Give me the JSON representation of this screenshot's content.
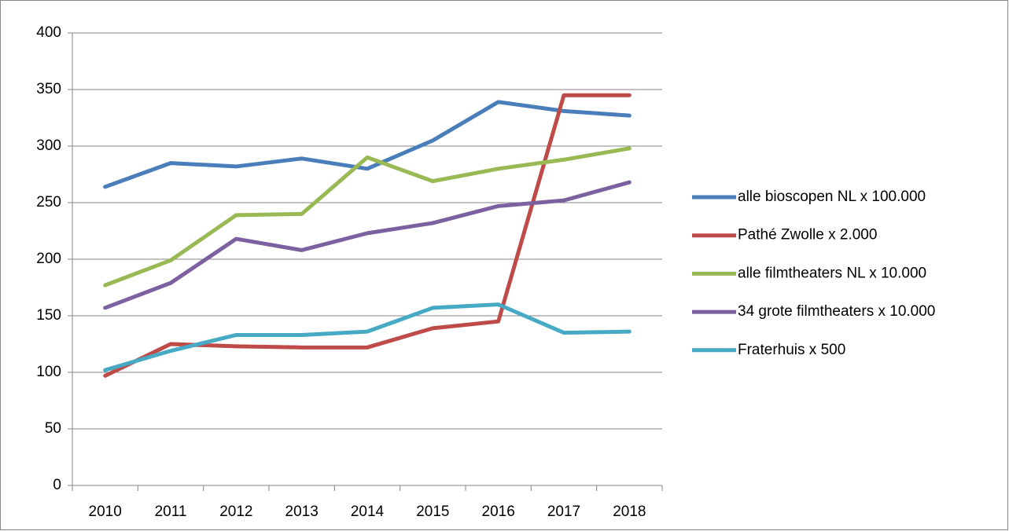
{
  "chart_data": {
    "type": "line",
    "categories": [
      "2010",
      "2011",
      "2012",
      "2013",
      "2014",
      "2015",
      "2016",
      "2017",
      "2018"
    ],
    "series": [
      {
        "name": "alle bioscopen NL x 100.000",
        "color": "#4a7ebb",
        "values": [
          264,
          285,
          282,
          289,
          280,
          305,
          339,
          331,
          327
        ]
      },
      {
        "name": "Pathé Zwolle x 2.000",
        "color": "#be4b48",
        "values": [
          97,
          125,
          123,
          122,
          122,
          139,
          145,
          345,
          345
        ]
      },
      {
        "name": "alle filmtheaters NL x 10.000",
        "color": "#98b954",
        "values": [
          177,
          199,
          239,
          240,
          290,
          269,
          280,
          288,
          298
        ]
      },
      {
        "name": "34 grote filmtheaters x 10.000",
        "color": "#7d60a0",
        "values": [
          157,
          179,
          218,
          208,
          223,
          232,
          247,
          252,
          268
        ]
      },
      {
        "name": "Fraterhuis x 500",
        "color": "#46aac5",
        "values": [
          102,
          119,
          133,
          133,
          136,
          157,
          160,
          135,
          136
        ]
      }
    ],
    "ylim": [
      0,
      400
    ],
    "yticks": [
      0,
      50,
      100,
      150,
      200,
      250,
      300,
      350,
      400
    ],
    "grid": true,
    "legend": "right"
  }
}
